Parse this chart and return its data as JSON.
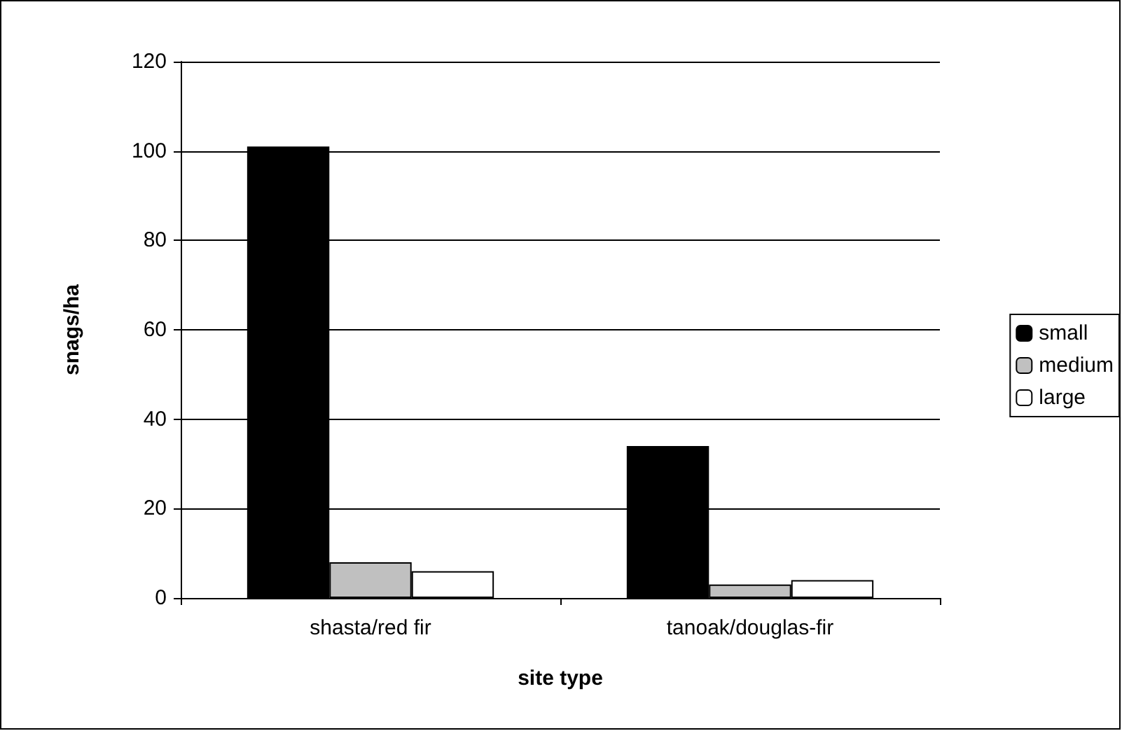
{
  "chart_data": {
    "type": "bar",
    "xlabel": "site type",
    "ylabel": "snags/ha",
    "categories": [
      "shasta/red fir",
      "tanoak/douglas-fir"
    ],
    "series": [
      {
        "name": "small",
        "color": "#000000",
        "values": [
          101,
          34
        ]
      },
      {
        "name": "medium",
        "color": "#c0c0c0",
        "values": [
          8,
          3
        ]
      },
      {
        "name": "large",
        "color": "#ffffff",
        "values": [
          6,
          4
        ]
      }
    ],
    "ylim": [
      0,
      120
    ],
    "yticks": [
      0,
      20,
      40,
      60,
      80,
      100,
      120
    ],
    "grid": "y",
    "legend": "right"
  }
}
